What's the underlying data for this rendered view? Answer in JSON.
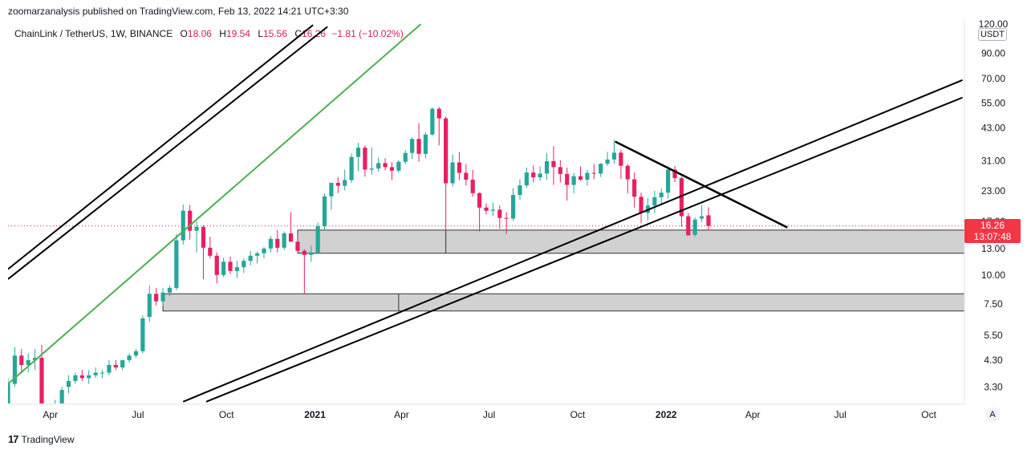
{
  "header": {
    "text": "zoomarzanalysis published on TradingView.com, Feb 13, 2022 14:21 UTC+3:30"
  },
  "legend": {
    "symbol": "ChainLink / TetherUS, 1W, BINANCE",
    "open_label": "O",
    "open": "18.06",
    "high_label": "H",
    "high": "19.54",
    "low_label": "L",
    "low": "15.56",
    "close_label": "C",
    "close": "16.26",
    "change": "−1.81 (−10.02%)"
  },
  "price_axis": {
    "unit": "USDT",
    "mode": "A",
    "ticks": [
      "120.00",
      "90.00",
      "70.00",
      "55.00",
      "43.00",
      "31.00",
      "23.00",
      "17.00",
      "13.00",
      "10.00",
      "7.50",
      "5.50",
      "4.30",
      "3.30"
    ]
  },
  "time_axis": {
    "ticks": [
      "Apr",
      "Jul",
      "Oct",
      "2021",
      "Apr",
      "Jul",
      "Oct",
      "2022",
      "Apr",
      "Jul",
      "Oct"
    ]
  },
  "last_price": {
    "price": "16.26",
    "countdown": "13:07:48"
  },
  "footer": {
    "brand": "TradingView"
  },
  "colors": {
    "up": "#26a69a",
    "down": "#e91e63",
    "trend": "#4caf50",
    "line": "#000000",
    "zone": "#d1d1d1"
  },
  "chart_data": {
    "type": "candlestick",
    "symbol": "ChainLink / TetherUS",
    "interval": "1W",
    "y_scale": "log",
    "ylim": [
      2.8,
      125
    ],
    "x_range": [
      "2020-02-17",
      "2022-11-07"
    ],
    "candles": [
      [
        "2020-02-17",
        2.8,
        3.6,
        2.6,
        3.4
      ],
      [
        "2020-02-24",
        3.4,
        4.9,
        3.3,
        4.5
      ],
      [
        "2020-03-02",
        4.5,
        4.8,
        3.8,
        4.1
      ],
      [
        "2020-03-09",
        4.1,
        4.6,
        3.8,
        4.3
      ],
      [
        "2020-03-16",
        4.3,
        4.8,
        3.9,
        4.4
      ],
      [
        "2020-03-23",
        4.4,
        5.0,
        3.0,
        2.5
      ],
      [
        "2020-03-30",
        2.6,
        2.7,
        2.4,
        2.5
      ],
      [
        "2020-04-06",
        2.5,
        2.9,
        2.4,
        2.8
      ],
      [
        "2020-04-13",
        2.8,
        3.3,
        2.7,
        3.2
      ],
      [
        "2020-04-20",
        3.3,
        3.7,
        3.1,
        3.5
      ],
      [
        "2020-04-27",
        3.5,
        3.8,
        3.4,
        3.7
      ],
      [
        "2020-05-04",
        3.7,
        3.9,
        3.5,
        3.6
      ],
      [
        "2020-05-11",
        3.6,
        3.9,
        3.4,
        3.7
      ],
      [
        "2020-05-18",
        3.7,
        4.0,
        3.6,
        3.8
      ],
      [
        "2020-05-25",
        3.8,
        3.9,
        3.6,
        3.8
      ],
      [
        "2020-06-01",
        3.8,
        4.3,
        3.7,
        4.1
      ],
      [
        "2020-06-08",
        4.1,
        4.3,
        3.9,
        4.0
      ],
      [
        "2020-06-15",
        4.0,
        4.2,
        3.9,
        4.3
      ],
      [
        "2020-06-22",
        4.3,
        4.6,
        4.2,
        4.5
      ],
      [
        "2020-06-29",
        4.5,
        4.8,
        4.4,
        4.7
      ],
      [
        "2020-07-06",
        4.7,
        6.7,
        4.6,
        6.5
      ],
      [
        "2020-07-13",
        6.6,
        9.0,
        6.3,
        8.3
      ],
      [
        "2020-07-20",
        8.3,
        8.8,
        7.4,
        7.7
      ],
      [
        "2020-07-27",
        7.7,
        8.8,
        7.4,
        8.4
      ],
      [
        "2020-08-03",
        8.4,
        9.0,
        8.1,
        8.8
      ],
      [
        "2020-08-10",
        8.8,
        15.0,
        8.6,
        14.1
      ],
      [
        "2020-08-17",
        14.1,
        20.1,
        13.5,
        18.9
      ],
      [
        "2020-08-24",
        18.9,
        20.0,
        14.2,
        15.5
      ],
      [
        "2020-08-31",
        15.5,
        17.0,
        12.5,
        16.1
      ],
      [
        "2020-09-07",
        16.1,
        16.4,
        9.6,
        13.1
      ],
      [
        "2020-09-14",
        13.1,
        14.6,
        11.8,
        12.1
      ],
      [
        "2020-09-21",
        12.1,
        12.5,
        9.2,
        10.0
      ],
      [
        "2020-09-28",
        10.0,
        11.9,
        9.8,
        11.4
      ],
      [
        "2020-10-05",
        11.4,
        12.0,
        10.1,
        10.4
      ],
      [
        "2020-10-12",
        10.4,
        11.5,
        9.7,
        10.8
      ],
      [
        "2020-10-19",
        10.8,
        11.8,
        10.2,
        11.5
      ],
      [
        "2020-10-26",
        11.5,
        12.7,
        11.0,
        12.1
      ],
      [
        "2020-11-02",
        12.1,
        12.6,
        11.2,
        12.4
      ],
      [
        "2020-11-09",
        12.4,
        13.2,
        11.8,
        13.0
      ],
      [
        "2020-11-16",
        13.0,
        14.7,
        12.5,
        14.3
      ],
      [
        "2020-11-23",
        14.3,
        15.6,
        12.5,
        13.1
      ],
      [
        "2020-11-30",
        13.1,
        15.4,
        12.8,
        15.1
      ],
      [
        "2020-12-07",
        15.1,
        18.6,
        14.2,
        13.9
      ],
      [
        "2020-12-14",
        13.9,
        15.1,
        12.5,
        12.7
      ],
      [
        "2020-12-21",
        12.7,
        12.9,
        8.3,
        12.2
      ],
      [
        "2020-12-28",
        12.2,
        13.4,
        11.4,
        12.5
      ],
      [
        "2021-01-04",
        12.5,
        16.8,
        12.3,
        16.2
      ],
      [
        "2021-01-11",
        16.2,
        22.4,
        15.6,
        21.8
      ],
      [
        "2021-01-18",
        21.8,
        25.0,
        19.1,
        24.9
      ],
      [
        "2021-01-25",
        24.9,
        26.4,
        22.5,
        24.2
      ],
      [
        "2021-02-01",
        24.2,
        28.4,
        23.1,
        25.6
      ],
      [
        "2021-02-08",
        25.6,
        33.3,
        24.9,
        32.2
      ],
      [
        "2021-02-15",
        32.2,
        37.0,
        28.0,
        35.3
      ],
      [
        "2021-02-22",
        35.3,
        36.1,
        26.5,
        28.4
      ],
      [
        "2021-03-01",
        28.4,
        35.4,
        27.0,
        28.7
      ],
      [
        "2021-03-08",
        28.7,
        32.0,
        27.8,
        30.3
      ],
      [
        "2021-03-15",
        30.3,
        31.8,
        28.2,
        29.1
      ],
      [
        "2021-03-22",
        29.1,
        30.6,
        25.6,
        28.1
      ],
      [
        "2021-03-29",
        28.1,
        31.2,
        27.5,
        30.7
      ],
      [
        "2021-04-05",
        30.7,
        34.5,
        29.9,
        33.5
      ],
      [
        "2021-04-12",
        33.5,
        39.2,
        31.5,
        38.5
      ],
      [
        "2021-04-19",
        38.5,
        45.0,
        30.7,
        33.2
      ],
      [
        "2021-04-26",
        33.2,
        41.2,
        31.8,
        40.2
      ],
      [
        "2021-05-03",
        40.2,
        52.7,
        39.7,
        51.9
      ],
      [
        "2021-05-10",
        51.9,
        52.9,
        36.1,
        47.2
      ],
      [
        "2021-05-17",
        47.2,
        48.0,
        15.5,
        24.8
      ],
      [
        "2021-05-24",
        24.8,
        33.0,
        24.0,
        30.5
      ],
      [
        "2021-05-31",
        30.5,
        33.8,
        25.6,
        27.5
      ],
      [
        "2021-06-07",
        27.5,
        30.0,
        24.3,
        25.7
      ],
      [
        "2021-06-14",
        25.7,
        28.3,
        21.7,
        22.5
      ],
      [
        "2021-06-21",
        22.5,
        22.7,
        15.4,
        19.5
      ],
      [
        "2021-06-28",
        19.5,
        20.3,
        18.2,
        18.9
      ],
      [
        "2021-07-05",
        18.9,
        20.5,
        17.9,
        19.1
      ],
      [
        "2021-07-12",
        19.1,
        19.9,
        15.8,
        17.6
      ],
      [
        "2021-07-19",
        17.6,
        18.6,
        15.0,
        17.5
      ],
      [
        "2021-07-26",
        17.5,
        23.6,
        17.1,
        22.1
      ],
      [
        "2021-08-02",
        22.1,
        25.8,
        21.1,
        24.3
      ],
      [
        "2021-08-09",
        24.3,
        29.0,
        23.7,
        27.6
      ],
      [
        "2021-08-16",
        27.6,
        29.6,
        25.0,
        26.3
      ],
      [
        "2021-08-23",
        26.3,
        29.3,
        25.4,
        27.3
      ],
      [
        "2021-08-30",
        27.3,
        33.5,
        25.7,
        30.9
      ],
      [
        "2021-09-06",
        30.9,
        35.8,
        24.4,
        29.1
      ],
      [
        "2021-09-13",
        29.1,
        31.2,
        25.0,
        27.2
      ],
      [
        "2021-09-20",
        27.2,
        29.0,
        20.9,
        24.4
      ],
      [
        "2021-09-27",
        24.4,
        27.5,
        22.5,
        26.6
      ],
      [
        "2021-10-04",
        26.6,
        29.3,
        25.4,
        25.7
      ],
      [
        "2021-10-11",
        25.7,
        28.3,
        24.2,
        27.5
      ],
      [
        "2021-10-18",
        27.5,
        30.0,
        25.8,
        27.3
      ],
      [
        "2021-10-25",
        27.3,
        30.3,
        26.4,
        30.1
      ],
      [
        "2021-11-01",
        30.1,
        33.9,
        29.5,
        31.4
      ],
      [
        "2021-11-08",
        31.4,
        38.2,
        30.1,
        33.6
      ],
      [
        "2021-11-15",
        33.6,
        34.6,
        25.9,
        29.5
      ],
      [
        "2021-11-22",
        29.5,
        30.0,
        22.5,
        25.8
      ],
      [
        "2021-11-29",
        25.8,
        27.6,
        19.5,
        21.7
      ],
      [
        "2021-12-06",
        21.7,
        22.6,
        16.7,
        18.5
      ],
      [
        "2021-12-13",
        18.5,
        21.4,
        17.2,
        19.9
      ],
      [
        "2021-12-20",
        19.9,
        23.0,
        18.5,
        21.6
      ],
      [
        "2021-12-27",
        21.6,
        23.6,
        19.9,
        22.6
      ],
      [
        "2022-01-03",
        22.6,
        29.4,
        21.3,
        28.4
      ],
      [
        "2022-01-10",
        28.4,
        29.5,
        25.1,
        26.1
      ],
      [
        "2022-01-17",
        26.1,
        26.5,
        16.1,
        17.9
      ],
      [
        "2022-01-24",
        17.9,
        18.5,
        14.9,
        14.8
      ],
      [
        "2022-01-31",
        14.9,
        17.7,
        14.6,
        17.3
      ],
      [
        "2022-02-07",
        17.5,
        20.0,
        16.9,
        17.9
      ],
      [
        "2022-02-14",
        18.06,
        19.54,
        15.56,
        16.26
      ]
    ],
    "support_zones": [
      {
        "low": 12.4,
        "high": 15.6,
        "start": "2020-12-14"
      },
      {
        "low": 7.0,
        "high": 8.3,
        "start": "2020-07-27"
      }
    ],
    "trendlines": [
      {
        "type": "channel",
        "from": [
          "2020-02-17",
          10.6
        ],
        "to": [
          "2020-12-30",
          119
        ]
      },
      {
        "type": "channel",
        "from": [
          "2020-02-17",
          9.6
        ],
        "to": [
          "2021-01-14",
          117
        ]
      },
      {
        "type": "trend",
        "from": [
          "2020-02-17",
          3.4
        ],
        "to": [
          "2021-04-21",
          120
        ]
      },
      {
        "type": "channel",
        "from": [
          "2020-08-17",
          2.85
        ],
        "to": [
          "2022-11-05",
          69
        ]
      },
      {
        "type": "channel",
        "from": [
          "2020-09-10",
          2.85
        ],
        "to": [
          "2022-11-05",
          58
        ]
      },
      {
        "type": "descending",
        "from": [
          "2021-11-09",
          37.5
        ],
        "to": [
          "2022-05-07",
          16.0
        ]
      }
    ]
  }
}
